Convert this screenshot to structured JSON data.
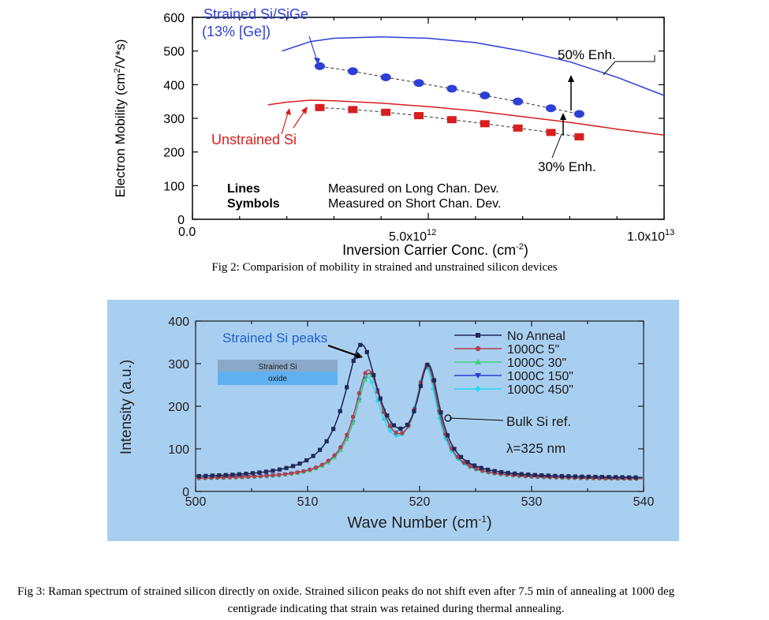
{
  "colors": {
    "strained": "#2c3fd6",
    "unstrained": "#d81e1e",
    "panel_bg": "#a9cff0",
    "no_anneal": "#1f2a5a",
    "c5": "#b04050",
    "c30": "#3fcf7a",
    "c150": "#2a3fd0",
    "c450": "#27d8f0"
  },
  "fig2": {
    "caption": "Fig 2: Comparision of  mobility in strained and unstrained silicon devices",
    "strained_label_1": "Strained Si/SiGe",
    "strained_label_2": "(13% [Ge])",
    "unstrained_label": "Unstrained Si",
    "enh50": "50% Enh.",
    "enh30": "30% Enh.",
    "lines_key": "Lines",
    "lines_desc": "Measured on Long Chan. Dev.",
    "symbols_key": "Symbols",
    "symbols_desc": "Measured on Short Chan. Dev.",
    "tick_x0": "0.0",
    "tick_x1_base": "5.0x10",
    "tick_x1_exp": "12",
    "tick_x2_base": "1.0x10",
    "tick_x2_exp": "13"
  },
  "fig3": {
    "caption_line1": "Fig 3: Raman spectrum of strained silicon directly on oxide. Strained silicon peaks do not shift even after 7.5 min of annealing at 1000 deg",
    "caption_line2": "centigrade indicating that strain was retained during thermal annealing.",
    "strained_peaks_label": "Strained Si peaks",
    "bulk_label": "Bulk Si ref.",
    "lambda_label": "λ=325 nm",
    "inset_top": "Strained Si",
    "inset_bottom": "oxide"
  },
  "chart_data": [
    {
      "type": "line",
      "title": "",
      "xlabel": "Inversion Carrier Conc. (cm-2)",
      "ylabel": "Electron Mobility (cm2/V*s)",
      "xlim": [
        0,
        10000000000000.0
      ],
      "ylim": [
        0,
        600
      ],
      "yticks": [
        0,
        100,
        200,
        300,
        400,
        500,
        600
      ],
      "series": [
        {
          "name": "Strained Si/SiGe long channel (line)",
          "x": [
            1900000000000.0,
            2500000000000.0,
            3000000000000.0,
            4000000000000.0,
            5000000000000.0,
            6000000000000.0,
            7000000000000.0,
            8000000000000.0,
            9000000000000.0,
            10000000000000.0
          ],
          "y": [
            500,
            528,
            538,
            542,
            538,
            525,
            500,
            468,
            422,
            368
          ]
        },
        {
          "name": "Unstrained Si long channel (line)",
          "x": [
            1600000000000.0,
            2000000000000.0,
            2500000000000.0,
            3000000000000.0,
            4000000000000.0,
            5000000000000.0,
            6000000000000.0,
            7000000000000.0,
            8000000000000.0,
            9000000000000.0,
            10000000000000.0
          ],
          "y": [
            340,
            348,
            354,
            352,
            345,
            335,
            322,
            305,
            288,
            268,
            250
          ]
        },
        {
          "name": "Strained Si/SiGe short channel (symbols)",
          "x": [
            2700000000000.0,
            3400000000000.0,
            4100000000000.0,
            4800000000000.0,
            5500000000000.0,
            6200000000000.0,
            6900000000000.0,
            7600000000000.0,
            8200000000000.0
          ],
          "y": [
            455,
            440,
            422,
            405,
            388,
            368,
            350,
            330,
            313
          ]
        },
        {
          "name": "Unstrained Si short channel (symbols)",
          "x": [
            2700000000000.0,
            3400000000000.0,
            4100000000000.0,
            4800000000000.0,
            5500000000000.0,
            6200000000000.0,
            6900000000000.0,
            7600000000000.0,
            8200000000000.0
          ],
          "y": [
            332,
            326,
            318,
            308,
            296,
            284,
            271,
            258,
            245
          ]
        }
      ]
    },
    {
      "type": "line",
      "title": "",
      "xlabel": "Wave Number (cm-1)",
      "ylabel": "Intensity (a.u.)",
      "xlim": [
        500,
        540
      ],
      "ylim": [
        0,
        400
      ],
      "xticks": [
        500,
        510,
        520,
        530,
        540
      ],
      "yticks": [
        0,
        100,
        200,
        300,
        400
      ],
      "legend": "top-right",
      "series": [
        {
          "name": "No Anneal",
          "peaks": [
            {
              "center": 514.8,
              "height": 320
            },
            {
              "center": 520.8,
              "height": 255
            }
          ],
          "baseline": 30
        },
        {
          "name": "1000C 5\"",
          "peaks": [
            {
              "center": 515.4,
              "height": 258
            },
            {
              "center": 520.7,
              "height": 265
            }
          ],
          "baseline": 28
        },
        {
          "name": "1000C 30\"",
          "peaks": [
            {
              "center": 515.5,
              "height": 248
            },
            {
              "center": 520.7,
              "height": 262
            }
          ],
          "baseline": 28
        },
        {
          "name": "1000C 150\"",
          "peaks": [
            {
              "center": 515.5,
              "height": 250
            },
            {
              "center": 520.7,
              "height": 260
            }
          ],
          "baseline": 28
        },
        {
          "name": "1000C 450\"",
          "peaks": [
            {
              "center": 515.3,
              "height": 242
            },
            {
              "center": 520.6,
              "height": 258
            }
          ],
          "baseline": 28
        }
      ]
    }
  ]
}
